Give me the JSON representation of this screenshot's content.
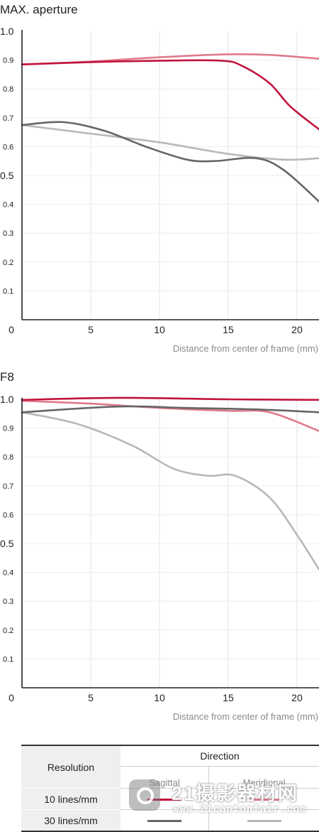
{
  "charts": {
    "max_title": "MAX. aperture",
    "f8_title": "F8"
  },
  "chart_data": [
    {
      "type": "line",
      "title": "MAX. aperture",
      "xlabel": "Distance from center of frame (mm)",
      "ylabel": "",
      "xlim": [
        0,
        21.6
      ],
      "ylim": [
        0,
        1.0
      ],
      "x_ticks": [
        "0",
        "5",
        "10",
        "15",
        "20"
      ],
      "y_ticks": [
        "0.1",
        "0.2",
        "0.3",
        "0.4",
        "0.5",
        "0.6",
        "0.7",
        "0.8",
        "0.9",
        "1.0"
      ],
      "grid": true,
      "series": [
        {
          "color": "#e07a8c",
          "x": [
            0,
            5,
            10,
            15,
            18,
            21.6
          ],
          "y": [
            0.885,
            0.895,
            0.91,
            0.92,
            0.918,
            0.905
          ]
        },
        {
          "color": "#c0143c",
          "x": [
            0,
            5,
            10,
            14.5,
            16,
            18,
            19.5,
            21.6
          ],
          "y": [
            0.885,
            0.893,
            0.898,
            0.898,
            0.88,
            0.82,
            0.74,
            0.66
          ]
        },
        {
          "color": "#b8b8b8",
          "x": [
            0,
            5,
            10,
            15,
            19,
            21.6
          ],
          "y": [
            0.675,
            0.645,
            0.615,
            0.575,
            0.555,
            0.56
          ]
        },
        {
          "color": "#666666",
          "x": [
            0,
            3,
            6,
            9,
            12,
            14,
            17,
            19,
            21.6
          ],
          "y": [
            0.675,
            0.685,
            0.655,
            0.6,
            0.555,
            0.55,
            0.56,
            0.52,
            0.41
          ]
        }
      ]
    },
    {
      "type": "line",
      "title": "F8",
      "xlabel": "Distance from center of frame (mm)",
      "ylabel": "",
      "xlim": [
        0,
        21.6
      ],
      "ylim": [
        0,
        1.0
      ],
      "x_ticks": [
        "0",
        "5",
        "10",
        "15",
        "20"
      ],
      "y_ticks": [
        "0.1",
        "0.2",
        "0.3",
        "0.4",
        "0.5",
        "0.6",
        "0.7",
        "0.8",
        "0.9",
        "1.0"
      ],
      "grid": true,
      "series": [
        {
          "color": "#e07a8c",
          "x": [
            0,
            5,
            10,
            15,
            18,
            21.6
          ],
          "y": [
            0.995,
            0.985,
            0.97,
            0.96,
            0.955,
            0.89
          ]
        },
        {
          "color": "#c0143c",
          "x": [
            0,
            7,
            15,
            21.6
          ],
          "y": [
            0.998,
            1.005,
            1.0,
            0.998
          ]
        },
        {
          "color": "#b8b8b8",
          "x": [
            0,
            4,
            8,
            11,
            13.5,
            15.5,
            18,
            20,
            21.6
          ],
          "y": [
            0.955,
            0.915,
            0.84,
            0.76,
            0.735,
            0.735,
            0.66,
            0.53,
            0.41
          ]
        },
        {
          "color": "#666666",
          "x": [
            0,
            7,
            12,
            17,
            21.6
          ],
          "y": [
            0.955,
            0.975,
            0.97,
            0.965,
            0.955
          ]
        }
      ]
    }
  ],
  "legend": {
    "resolution_label": "Resolution",
    "direction_label": "Direction",
    "sagittal_label": "Sagittal",
    "meridional_label": "Meridional",
    "rows": [
      {
        "label": "10 lines/mm",
        "sagittal_color": "#c0143c",
        "meridional_color": "#e07a8c"
      },
      {
        "label": "30 lines/mm",
        "sagittal_color": "#666666",
        "meridional_color": "#b8b8b8"
      }
    ]
  },
  "watermark": {
    "line1": "21摄影器材网",
    "line2": "www.21cantonfair.com"
  }
}
